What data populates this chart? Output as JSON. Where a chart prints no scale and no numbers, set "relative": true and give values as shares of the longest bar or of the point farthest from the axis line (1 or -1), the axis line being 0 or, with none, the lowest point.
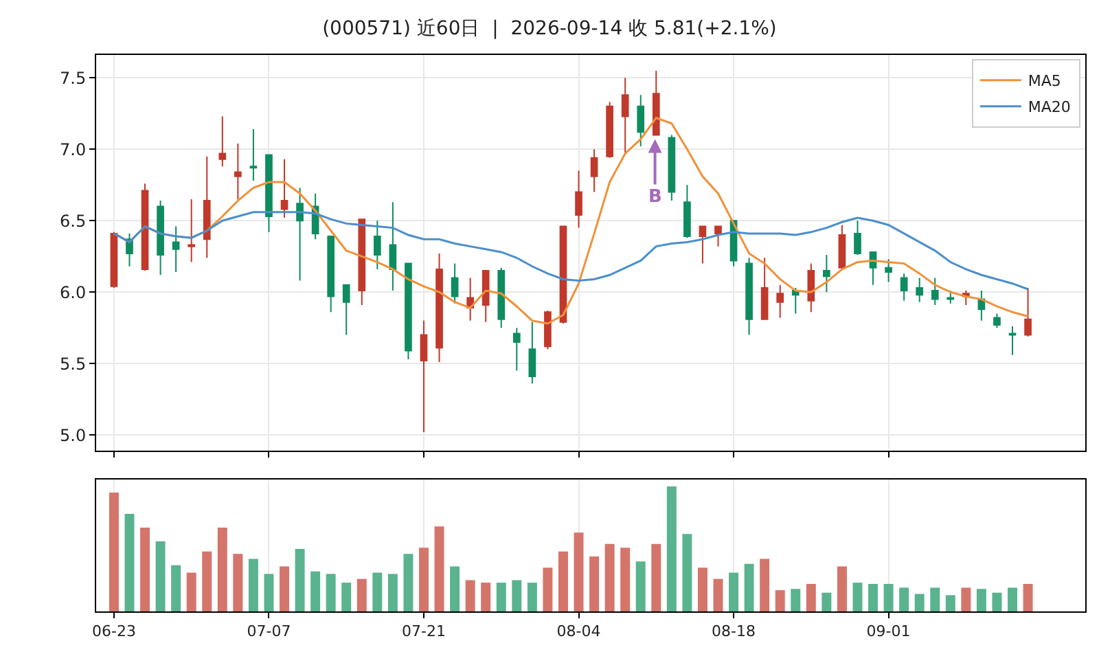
{
  "chart_data": [
    {
      "type": "candlestick",
      "title": "(000571) 近60日  |  2026-09-14 收 5.81(+2.1%)",
      "categories": [
        null,
        null,
        null,
        null,
        null,
        null,
        null,
        null,
        null,
        null,
        null,
        null,
        null,
        null,
        null,
        null,
        null,
        null,
        null,
        null,
        null,
        null,
        null,
        null,
        null,
        null,
        null,
        null,
        null,
        null,
        null,
        null,
        null,
        null,
        null,
        null,
        null,
        null,
        null,
        null,
        null,
        null,
        null,
        null,
        null,
        null,
        null,
        null,
        null,
        null,
        null,
        null,
        null,
        null,
        null,
        null,
        null,
        null,
        null,
        null
      ],
      "ohlc": [
        [
          6.04,
          6.42,
          6.03,
          6.41
        ],
        [
          6.37,
          6.41,
          6.18,
          6.27
        ],
        [
          6.16,
          6.76,
          6.15,
          6.71
        ],
        [
          6.6,
          6.64,
          6.12,
          6.26
        ],
        [
          6.35,
          6.46,
          6.14,
          6.3
        ],
        [
          6.32,
          6.65,
          6.21,
          6.33
        ],
        [
          6.37,
          6.95,
          6.24,
          6.64
        ],
        [
          6.93,
          7.23,
          6.88,
          6.97
        ],
        [
          6.81,
          7.04,
          6.65,
          6.84
        ],
        [
          6.88,
          7.14,
          6.78,
          6.87
        ],
        [
          6.96,
          6.96,
          6.42,
          6.53
        ],
        [
          6.58,
          6.93,
          6.52,
          6.64
        ],
        [
          6.62,
          6.73,
          6.08,
          6.5
        ],
        [
          6.6,
          6.69,
          6.37,
          6.41
        ],
        [
          6.39,
          6.39,
          5.86,
          5.97
        ],
        [
          6.05,
          6.05,
          5.7,
          5.93
        ],
        [
          6.01,
          6.51,
          5.91,
          6.51
        ],
        [
          6.39,
          6.5,
          6.16,
          6.26
        ],
        [
          6.33,
          6.63,
          6.01,
          6.16
        ],
        [
          6.2,
          6.2,
          5.53,
          5.59
        ],
        [
          5.52,
          5.8,
          5.02,
          5.7
        ],
        [
          5.61,
          6.27,
          5.51,
          6.16
        ],
        [
          6.1,
          6.2,
          5.92,
          5.97
        ],
        [
          5.89,
          6.1,
          5.8,
          5.96
        ],
        [
          5.91,
          6.15,
          5.79,
          6.15
        ],
        [
          6.15,
          6.17,
          5.75,
          5.81
        ],
        [
          5.71,
          5.75,
          5.45,
          5.65
        ],
        [
          5.6,
          5.79,
          5.36,
          5.41
        ],
        [
          5.62,
          5.87,
          5.6,
          5.86
        ],
        [
          5.79,
          6.46,
          5.78,
          6.46
        ],
        [
          6.54,
          6.85,
          6.45,
          6.7
        ],
        [
          6.81,
          7.0,
          6.7,
          6.94
        ],
        [
          6.95,
          7.33,
          6.94,
          7.3
        ],
        [
          7.23,
          7.5,
          6.96,
          7.38
        ],
        [
          7.3,
          7.38,
          7.02,
          7.12
        ],
        [
          7.1,
          7.55,
          7.1,
          7.39
        ],
        [
          7.08,
          7.1,
          6.64,
          6.7
        ],
        [
          6.63,
          6.75,
          6.38,
          6.39
        ],
        [
          6.39,
          6.46,
          6.2,
          6.46
        ],
        [
          6.41,
          6.46,
          6.32,
          6.46
        ],
        [
          6.5,
          6.5,
          6.18,
          6.22
        ],
        [
          6.2,
          6.24,
          5.7,
          5.81
        ],
        [
          5.81,
          6.24,
          5.81,
          6.03
        ],
        [
          5.93,
          6.05,
          5.82,
          5.99
        ],
        [
          6.01,
          6.03,
          5.85,
          5.98
        ],
        [
          5.94,
          6.2,
          5.86,
          6.15
        ],
        [
          6.15,
          6.26,
          6.0,
          6.11
        ],
        [
          6.17,
          6.47,
          6.17,
          6.4
        ],
        [
          6.41,
          6.5,
          6.26,
          6.27
        ],
        [
          6.28,
          6.28,
          6.05,
          6.17
        ],
        [
          6.17,
          6.23,
          6.07,
          6.14
        ],
        [
          6.1,
          6.13,
          5.94,
          6.01
        ],
        [
          6.03,
          6.1,
          5.93,
          5.98
        ],
        [
          6.01,
          6.1,
          5.91,
          5.95
        ],
        [
          5.96,
          6.01,
          5.92,
          5.95
        ],
        [
          5.97,
          6.01,
          5.91,
          5.99
        ],
        [
          5.95,
          6.01,
          5.8,
          5.88
        ],
        [
          5.82,
          5.85,
          5.75,
          5.77
        ],
        [
          5.71,
          5.76,
          5.56,
          5.7
        ],
        [
          5.7,
          6.03,
          5.69,
          5.81
        ]
      ],
      "colors": [
        "#c0392b",
        "#0e8c5f",
        "#c0392b",
        "#0e8c5f",
        "#0e8c5f",
        "#c0392b",
        "#c0392b",
        "#c0392b",
        "#c0392b",
        "#0e8c5f",
        "#0e8c5f",
        "#c0392b",
        "#0e8c5f",
        "#0e8c5f",
        "#0e8c5f",
        "#0e8c5f",
        "#c0392b",
        "#0e8c5f",
        "#0e8c5f",
        "#0e8c5f",
        "#c0392b",
        "#c0392b",
        "#0e8c5f",
        "#c0392b",
        "#c0392b",
        "#0e8c5f",
        "#0e8c5f",
        "#0e8c5f",
        "#c0392b",
        "#c0392b",
        "#c0392b",
        "#c0392b",
        "#c0392b",
        "#c0392b",
        "#0e8c5f",
        "#c0392b",
        "#0e8c5f",
        "#0e8c5f",
        "#c0392b",
        "#c0392b",
        "#0e8c5f",
        "#0e8c5f",
        "#c0392b",
        "#c0392b",
        "#0e8c5f",
        "#c0392b",
        "#0e8c5f",
        "#c0392b",
        "#0e8c5f",
        "#0e8c5f",
        "#0e8c5f",
        "#0e8c5f",
        "#0e8c5f",
        "#0e8c5f",
        "#0e8c5f",
        "#c0392b",
        "#0e8c5f",
        "#0e8c5f",
        "#0e8c5f",
        "#c0392b"
      ],
      "series": [
        {
          "name": "MA5",
          "type": "line",
          "color": "#f0913a",
          "values": [
            6.41,
            6.35,
            6.46,
            6.41,
            6.39,
            6.38,
            6.43,
            6.53,
            6.64,
            6.73,
            6.77,
            6.77,
            6.69,
            6.57,
            6.43,
            6.29,
            6.25,
            6.21,
            6.16,
            6.09,
            6.04,
            6.0,
            5.93,
            5.89,
            6.01,
            5.99,
            5.9,
            5.8,
            5.78,
            5.84,
            6.06,
            6.41,
            6.77,
            6.97,
            7.07,
            7.22,
            7.18,
            7.0,
            6.81,
            6.69,
            6.48,
            6.27,
            6.2,
            6.09,
            6.01,
            6.0,
            6.07,
            6.16,
            6.21,
            6.22,
            6.21,
            6.2,
            6.13,
            6.05,
            6.0,
            5.97,
            5.95,
            5.9,
            5.86,
            5.83
          ]
        },
        {
          "name": "MA20",
          "type": "line",
          "color": "#4a8fcc",
          "values": [
            6.41,
            6.35,
            6.46,
            6.41,
            6.39,
            6.38,
            6.43,
            6.5,
            6.53,
            6.56,
            6.56,
            6.56,
            6.56,
            6.55,
            6.51,
            6.48,
            6.47,
            6.46,
            6.45,
            6.4,
            6.37,
            6.37,
            6.34,
            6.32,
            6.3,
            6.28,
            6.24,
            6.18,
            6.13,
            6.09,
            6.08,
            6.09,
            6.12,
            6.17,
            6.22,
            6.32,
            6.34,
            6.35,
            6.37,
            6.4,
            6.42,
            6.41,
            6.41,
            6.41,
            6.4,
            6.42,
            6.45,
            6.49,
            6.52,
            6.5,
            6.47,
            6.41,
            6.35,
            6.29,
            6.21,
            6.16,
            6.12,
            6.09,
            6.06,
            6.02
          ]
        }
      ],
      "ylim": [
        4.89,
        7.66
      ],
      "yticks": [
        {
          "value": 5,
          "label": "5.0"
        },
        {
          "value": 5.5,
          "label": "5.5"
        },
        {
          "value": 6,
          "label": "6.0"
        },
        {
          "value": 6.5,
          "label": "6.5"
        },
        {
          "value": 7,
          "label": "7.0"
        },
        {
          "value": 7.5,
          "label": "7.5"
        }
      ],
      "tick_labels": "y",
      "grid": true,
      "legend": "top right",
      "annotations": [
        {
          "text": "B",
          "y": 7.1
        }
      ]
    },
    {
      "type": "bar",
      "relative": true,
      "categories": [
        "06-23",
        null,
        null,
        null,
        null,
        null,
        null,
        null,
        null,
        null,
        "07-07",
        null,
        null,
        null,
        null,
        null,
        null,
        null,
        null,
        null,
        "07-21",
        null,
        null,
        null,
        null,
        null,
        null,
        null,
        null,
        null,
        "08-04",
        null,
        null,
        null,
        null,
        null,
        null,
        null,
        null,
        null,
        "08-18",
        null,
        null,
        null,
        null,
        null,
        null,
        null,
        null,
        null,
        "09-01",
        null,
        null,
        null,
        null,
        null,
        null,
        null,
        null,
        null
      ],
      "values": [
        0.95,
        0.78,
        0.67,
        0.56,
        0.37,
        0.31,
        0.48,
        0.67,
        0.46,
        0.42,
        0.3,
        0.36,
        0.5,
        0.32,
        0.3,
        0.23,
        0.26,
        0.31,
        0.3,
        0.46,
        0.51,
        0.68,
        0.36,
        0.25,
        0.23,
        0.23,
        0.25,
        0.23,
        0.35,
        0.48,
        0.63,
        0.44,
        0.54,
        0.51,
        0.4,
        0.54,
        1,
        0.62,
        0.35,
        0.26,
        0.31,
        0.38,
        0.42,
        0.17,
        0.18,
        0.22,
        0.15,
        0.36,
        0.23,
        0.22,
        0.22,
        0.19,
        0.14,
        0.19,
        0.13,
        0.19,
        0.18,
        0.15,
        0.19,
        0.22
      ],
      "colors": [
        "#d4756b",
        "#5ab38f",
        "#d4756b",
        "#5ab38f",
        "#5ab38f",
        "#d4756b",
        "#d4756b",
        "#d4756b",
        "#d4756b",
        "#5ab38f",
        "#5ab38f",
        "#d4756b",
        "#5ab38f",
        "#5ab38f",
        "#5ab38f",
        "#5ab38f",
        "#d4756b",
        "#5ab38f",
        "#5ab38f",
        "#5ab38f",
        "#d4756b",
        "#d4756b",
        "#5ab38f",
        "#d4756b",
        "#d4756b",
        "#5ab38f",
        "#5ab38f",
        "#5ab38f",
        "#d4756b",
        "#d4756b",
        "#d4756b",
        "#d4756b",
        "#d4756b",
        "#d4756b",
        "#5ab38f",
        "#d4756b",
        "#5ab38f",
        "#5ab38f",
        "#d4756b",
        "#d4756b",
        "#5ab38f",
        "#5ab38f",
        "#d4756b",
        "#d4756b",
        "#5ab38f",
        "#d4756b",
        "#5ab38f",
        "#d4756b",
        "#5ab38f",
        "#5ab38f",
        "#5ab38f",
        "#5ab38f",
        "#5ab38f",
        "#5ab38f",
        "#5ab38f",
        "#d4756b",
        "#5ab38f",
        "#5ab38f",
        "#5ab38f",
        "#d4756b"
      ],
      "tick_labels": "x",
      "grid": "x"
    }
  ]
}
